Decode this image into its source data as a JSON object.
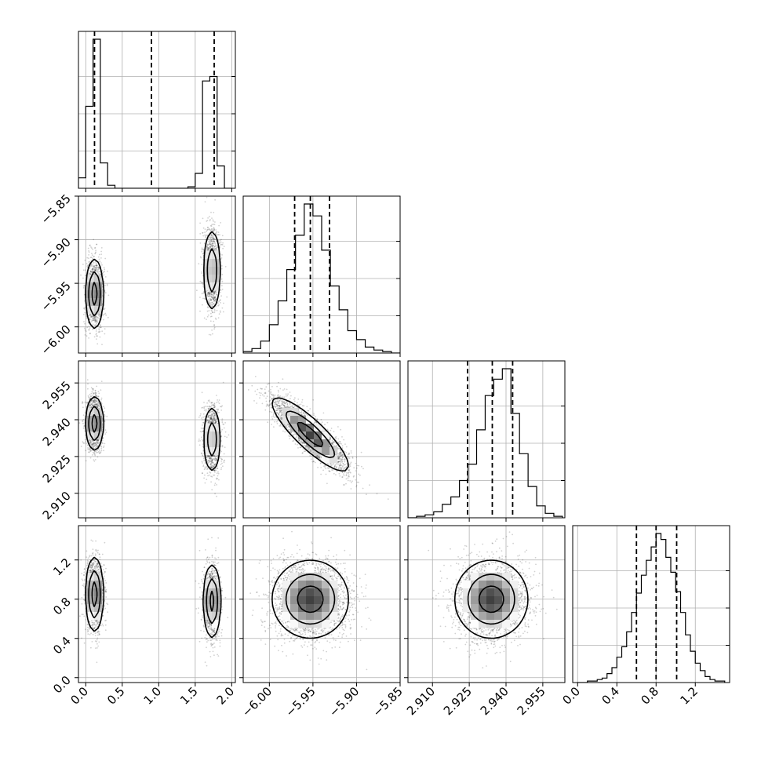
{
  "chart_data": {
    "type": "corner",
    "title": "",
    "grid": true,
    "parameters": [
      {
        "label": "",
        "range": [
          -0.1,
          2.05
        ],
        "ticks": [
          "0.0",
          "0.5",
          "1.0",
          "1.5",
          "2.0"
        ],
        "tick_values": [
          0.0,
          0.5,
          1.0,
          1.5,
          2.0
        ],
        "quantiles": [
          0.12,
          0.9,
          1.76
        ]
      },
      {
        "label": "",
        "range": [
          -6.03,
          -5.85
        ],
        "ticks": [
          "−6.00",
          "−5.95",
          "−5.90",
          "−5.85"
        ],
        "tick_values": [
          -6.0,
          -5.95,
          -5.9,
          -5.85
        ],
        "quantiles": [
          -5.971,
          -5.953,
          -5.931
        ]
      },
      {
        "label": "",
        "range": [
          2.9,
          2.964
        ],
        "ticks": [
          "2.910",
          "2.925",
          "2.940",
          "2.955"
        ],
        "tick_values": [
          2.91,
          2.925,
          2.94,
          2.955
        ],
        "quantiles": [
          2.9243,
          2.9344,
          2.9427
        ]
      },
      {
        "label": "",
        "range": [
          -0.05,
          1.55
        ],
        "ticks": [
          "0.0",
          "0.4",
          "0.8",
          "1.2"
        ],
        "tick_values": [
          0.0,
          0.4,
          0.8,
          1.2
        ],
        "quantiles": [
          0.6,
          0.8,
          1.01
        ]
      }
    ],
    "histograms": [
      {
        "param": 0,
        "bin_edges": [
          -0.1,
          0.0,
          0.1,
          0.2,
          0.3,
          0.4,
          0.5,
          1.3,
          1.4,
          1.5,
          1.6,
          1.7,
          1.8,
          1.9,
          2.0
        ],
        "counts": [
          7,
          55,
          100,
          17,
          2,
          0,
          0,
          0,
          1,
          10,
          72,
          75,
          15,
          0
        ]
      },
      {
        "param": 1,
        "bin_edges": [
          -6.03,
          -6.02,
          -6.01,
          -6.0,
          -5.99,
          -5.98,
          -5.97,
          -5.96,
          -5.95,
          -5.94,
          -5.93,
          -5.92,
          -5.91,
          -5.9,
          -5.89,
          -5.88,
          -5.87,
          -5.86,
          -5.85
        ],
        "counts": [
          1,
          3,
          8,
          19,
          35,
          56,
          79,
          100,
          92,
          69,
          45,
          29,
          15,
          9,
          4,
          2,
          1,
          0
        ]
      },
      {
        "param": 2,
        "bin_edges": [
          2.9,
          2.9035,
          2.907,
          2.9105,
          2.914,
          2.9175,
          2.921,
          2.9245,
          2.928,
          2.9315,
          2.935,
          2.9385,
          2.942,
          2.9455,
          2.949,
          2.9525,
          2.956,
          2.9595,
          2.963
        ],
        "counts": [
          0,
          1,
          2,
          4,
          9,
          14,
          25,
          36,
          59,
          82,
          93,
          100,
          70,
          43,
          21,
          8,
          3,
          1
        ]
      },
      {
        "param": 3,
        "bin_edges": [
          0.0,
          0.05,
          0.1,
          0.15,
          0.2,
          0.25,
          0.3,
          0.35,
          0.4,
          0.45,
          0.5,
          0.55,
          0.6,
          0.65,
          0.7,
          0.75,
          0.8,
          0.85,
          0.9,
          0.95,
          1.0,
          1.05,
          1.1,
          1.15,
          1.2,
          1.25,
          1.3,
          1.35,
          1.4,
          1.45,
          1.5
        ],
        "counts": [
          0,
          0,
          1,
          1,
          2,
          3,
          6,
          10,
          17,
          24,
          34,
          47,
          60,
          72,
          82,
          91,
          100,
          96,
          84,
          74,
          61,
          47,
          32,
          21,
          13,
          8,
          4,
          2,
          1,
          1
        ]
      }
    ],
    "joint_distributions": [
      {
        "x_param": 0,
        "y_param": 1,
        "modes": [
          {
            "x": 0.12,
            "y": -5.962,
            "sx": 0.06,
            "sy": 0.02,
            "rho": 0.0,
            "weight": 0.52
          },
          {
            "x": 1.73,
            "y": -5.935,
            "sx": 0.06,
            "sy": 0.024,
            "rho": 0.0,
            "weight": 0.48
          }
        ]
      },
      {
        "x_param": 0,
        "y_param": 2,
        "modes": [
          {
            "x": 0.12,
            "y": 2.9385,
            "sx": 0.06,
            "sy": 0.0055,
            "rho": 0.0,
            "weight": 0.52
          },
          {
            "x": 1.73,
            "y": 2.932,
            "sx": 0.06,
            "sy": 0.007,
            "rho": 0.0,
            "weight": 0.48
          }
        ]
      },
      {
        "x_param": 0,
        "y_param": 3,
        "modes": [
          {
            "x": 0.12,
            "y": 0.85,
            "sx": 0.06,
            "sy": 0.19,
            "rho": 0.0,
            "weight": 0.52
          },
          {
            "x": 1.73,
            "y": 0.78,
            "sx": 0.06,
            "sy": 0.19,
            "rho": 0.0,
            "weight": 0.48
          }
        ]
      },
      {
        "x_param": 1,
        "y_param": 2,
        "modes": [
          {
            "x": -5.953,
            "y": 2.934,
            "sx": 0.022,
            "sy": 0.0075,
            "rho": -0.86,
            "weight": 1.0
          }
        ]
      },
      {
        "x_param": 1,
        "y_param": 3,
        "modes": [
          {
            "x": -5.953,
            "y": 0.8,
            "sx": 0.022,
            "sy": 0.2,
            "rho": 0.0,
            "weight": 1.0
          }
        ]
      },
      {
        "x_param": 2,
        "y_param": 3,
        "modes": [
          {
            "x": 2.934,
            "y": 0.8,
            "sx": 0.0075,
            "sy": 0.2,
            "rho": 0.0,
            "weight": 1.0
          }
        ]
      }
    ]
  }
}
